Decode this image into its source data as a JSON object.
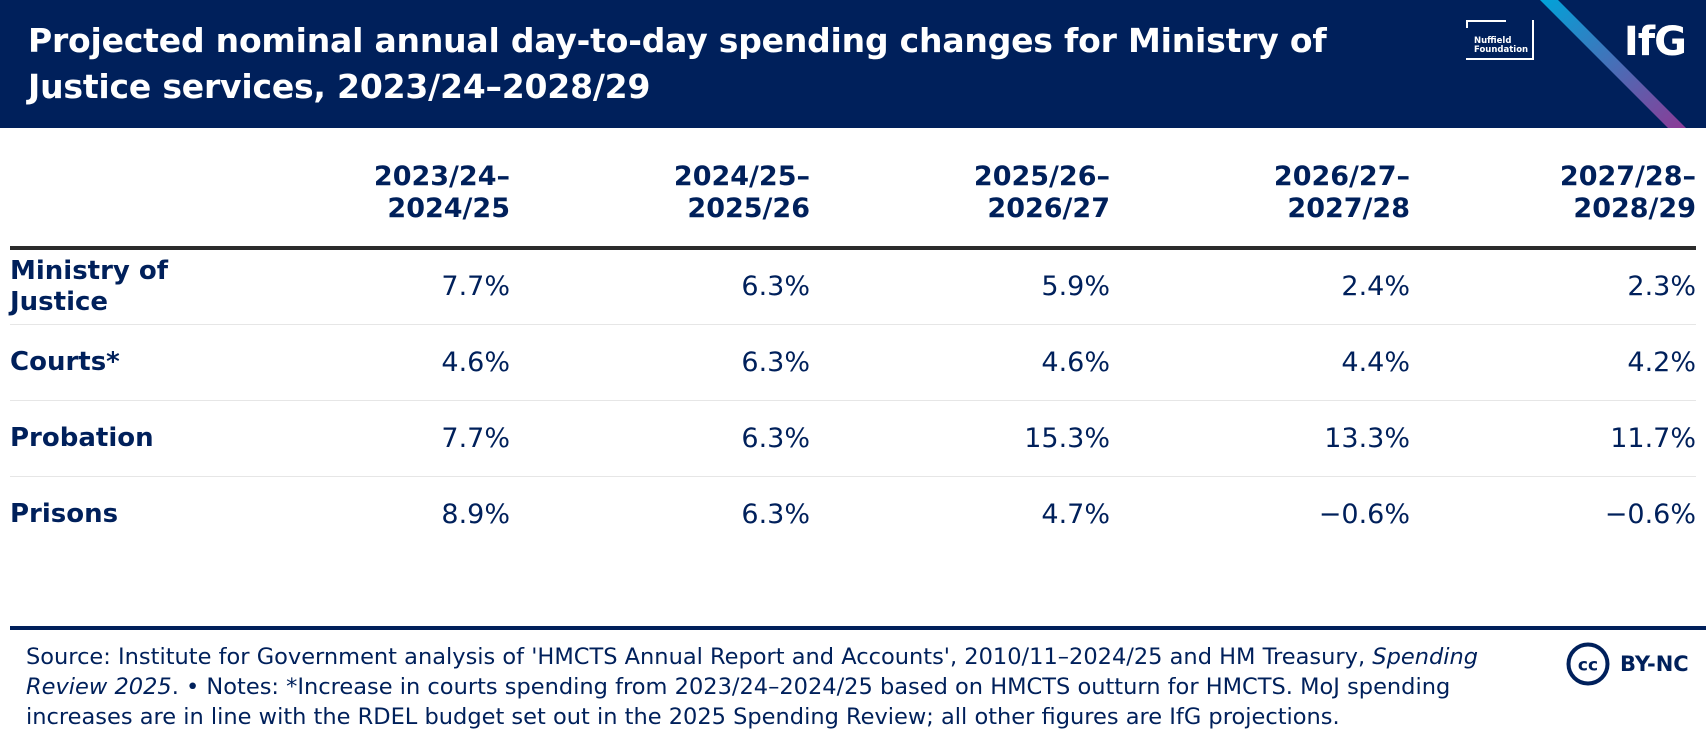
{
  "header": {
    "title": "Projected nominal annual day-to-day spending changes for Ministry of Justice services, 2023/24–2028/29",
    "partner_logo_text": "Nuffield Foundation",
    "brand_logo_text": "IfG",
    "colors": {
      "navy": "#00205b",
      "accent_cyan": "#00a3d9",
      "accent_purple": "#8c3b96"
    }
  },
  "chart_data": {
    "type": "table",
    "title": "Projected nominal annual day-to-day spending changes for Ministry of Justice services, 2023/24–2028/29",
    "columns": [
      "2023/24–\n2024/25",
      "2024/25–\n2025/26",
      "2025/26–\n2026/27",
      "2026/27–\n2027/28",
      "2027/28–\n2028/29"
    ],
    "rows": [
      {
        "label": "Ministry of Justice",
        "values": [
          "7.7%",
          "6.3%",
          "5.9%",
          "2.4%",
          "2.3%"
        ]
      },
      {
        "label": "Courts*",
        "values": [
          "4.6%",
          "6.3%",
          "4.6%",
          "4.4%",
          "4.2%"
        ]
      },
      {
        "label": "Probation",
        "values": [
          "7.7%",
          "6.3%",
          "15.3%",
          "13.3%",
          "11.7%"
        ]
      },
      {
        "label": "Prisons",
        "values": [
          "8.9%",
          "6.3%",
          "4.7%",
          "−0.6%",
          "−0.6%"
        ]
      }
    ]
  },
  "footer": {
    "source_prefix": "Source: Institute for Government analysis of 'HMCTS Annual Report and Accounts', 2010/11–2024/25 and HM Treasury, ",
    "source_italic": "Spending Review 2025",
    "notes": ". • Notes: *Increase in courts spending from 2023/24–2024/25 based on HMCTS outturn for HMCTS. MoJ spending increases are in line with the RDEL budget set out in the 2025 Spending Review; all other figures are IfG projections.",
    "licence_text": "BY-NC",
    "cc_symbol": "cc"
  }
}
